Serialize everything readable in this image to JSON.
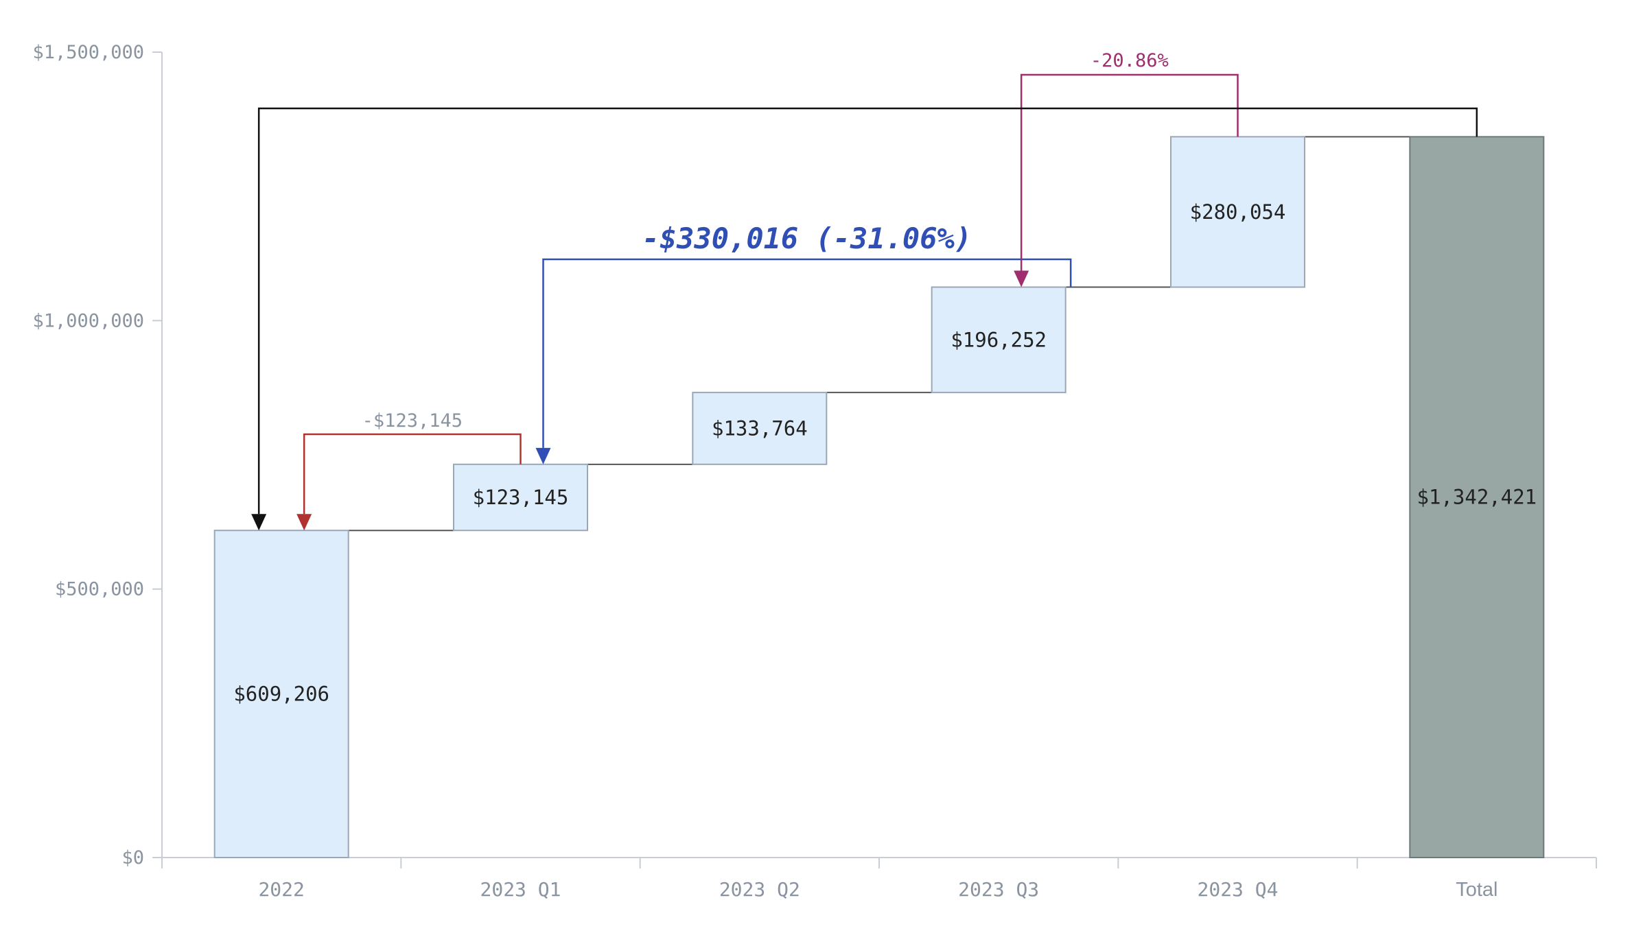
{
  "chart_data": {
    "type": "waterfall",
    "categories": [
      "2022",
      "2023 Q1",
      "2023 Q2",
      "2023 Q3",
      "2023 Q4",
      "Total"
    ],
    "values": [
      609206,
      123145,
      133764,
      196252,
      280054,
      1342421
    ],
    "value_labels": [
      "$609,206",
      "$123,145",
      "$133,764",
      "$196,252",
      "$280,054",
      "$1,342,421"
    ],
    "is_total": [
      false,
      false,
      false,
      false,
      false,
      true
    ],
    "y_ticks": [
      0,
      500000,
      1000000,
      1500000
    ],
    "y_tick_labels": [
      "$0",
      "$500,000",
      "$1,000,000",
      "$1,500,000"
    ],
    "ylim": [
      0,
      1500000
    ],
    "grid": false,
    "legend": "none",
    "colors": {
      "bar_fill": "#deedfb",
      "bar_stroke": "#9aa8b6",
      "total_fill": "#98a6a4",
      "total_stroke": "#6c7a79",
      "connector": "#555555",
      "axis": "#c8ced4"
    },
    "annotations": [
      {
        "from": "2023 Q1",
        "to": "2022",
        "label": "-$123,145",
        "label_color": "#8a94a0",
        "line_color": "#b0322e",
        "style": "small"
      },
      {
        "from": "2023 Q3",
        "to": "2023 Q1",
        "label": "-$330,016 (-31.06%)",
        "label_color": "#2f4fb5",
        "line_color": "#2f4fb5",
        "style": "big"
      },
      {
        "from": "2023 Q4",
        "to": "2023 Q3",
        "label": "-20.86%",
        "label_color": "#a02e6e",
        "line_color": "#a02e6e",
        "style": "small"
      },
      {
        "from": "Total",
        "to": "2022",
        "label": "",
        "label_color": "#111111",
        "line_color": "#111111",
        "style": "none"
      }
    ]
  }
}
